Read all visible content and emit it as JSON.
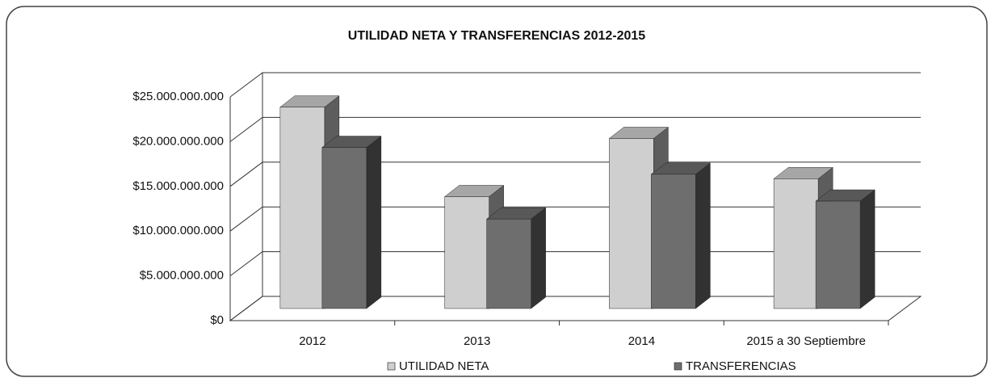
{
  "chart_data": {
    "type": "bar",
    "title": "UTILIDAD NETA Y TRANSFERENCIAS 2012-2015",
    "categories": [
      "2012",
      "2013",
      "2014",
      "2015 a 30 Septiembre"
    ],
    "series": [
      {
        "name": "UTILIDAD NETA",
        "color": "#cfcfcf",
        "values": [
          22500000000,
          12500000000,
          19000000000,
          14500000000
        ]
      },
      {
        "name": "TRANSFERENCIAS",
        "color": "#6e6e6e",
        "values": [
          18000000000,
          10000000000,
          15000000000,
          12000000000
        ]
      }
    ],
    "ylim": [
      0,
      25000000000
    ],
    "yticks": [
      {
        "value": 0,
        "label": "$0"
      },
      {
        "value": 5000000000,
        "label": "$5.000.000.000"
      },
      {
        "value": 10000000000,
        "label": "$10.000.000.000"
      },
      {
        "value": 15000000000,
        "label": "$15.000.000.000"
      },
      {
        "value": 20000000000,
        "label": "$20.000.000.000"
      },
      {
        "value": 25000000000,
        "label": "$25.000.000.000"
      }
    ],
    "grid": true,
    "legend": "bottom"
  }
}
